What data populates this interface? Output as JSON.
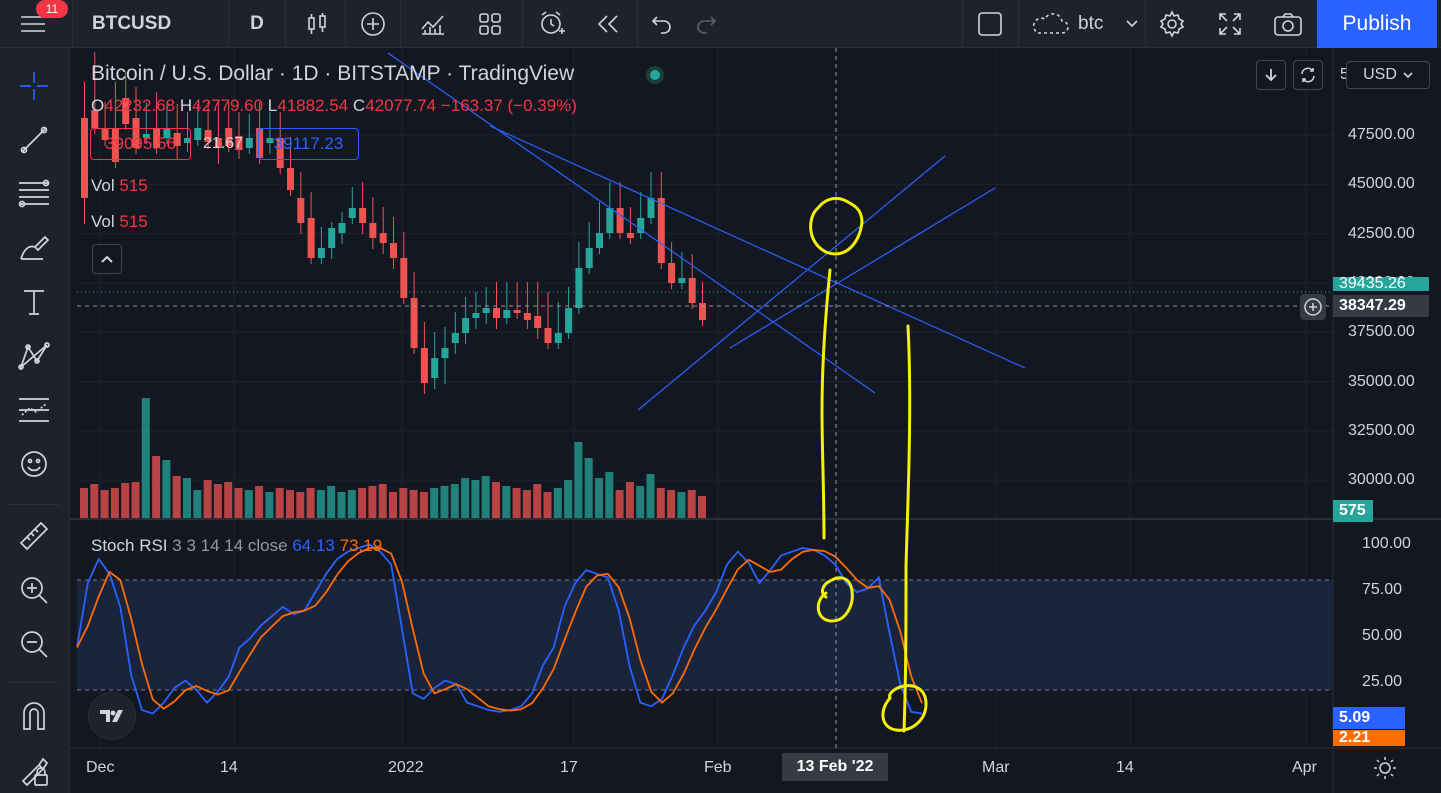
{
  "topbar": {
    "notifications": "11",
    "symbol": "BTCUSD",
    "interval": "D",
    "layout_name": "btc",
    "publish_label": "Publish"
  },
  "legend": {
    "title": "Bitcoin / U.S. Dollar · 1D · BITSTAMP · TradingView",
    "o_label": "O",
    "o": "42232.68",
    "h_label": "H",
    "h": "42779.60",
    "l_label": "L",
    "l": "41882.54",
    "c_label": "C",
    "c": "42077.74",
    "change": "−163.37 (−0.39%)",
    "sell_price": "39095.56",
    "spread": "21.67",
    "buy_price": "39117.23",
    "vol1_label": "Vol",
    "vol1": "515",
    "vol2_label": "Vol",
    "vol2": "515"
  },
  "price_axis": {
    "currency": "USD",
    "labels": [
      "47500.00",
      "45000.00",
      "42500.00",
      "40000.00",
      "37500.00",
      "35000.00",
      "32500.00",
      "30000.00"
    ],
    "top_partial": "5",
    "last_price": "39435.26",
    "crosshair_price": "38347.29",
    "volume_tag": "575"
  },
  "stoch": {
    "name": "Stoch RSI",
    "params": "3 3 14 14 close",
    "k_value": "64.13",
    "d_value": "73.19",
    "axis_labels": [
      "100.00",
      "75.00",
      "50.00",
      "25.00"
    ],
    "k_tag": "5.09",
    "d_tag": "2.21"
  },
  "time_axis": {
    "labels": [
      "Dec",
      "14",
      "2022",
      "17",
      "Feb",
      "Mar",
      "14",
      "Apr"
    ],
    "crosshair_date": "13 Feb '22"
  },
  "colors": {
    "up": "#26a69a",
    "down": "#ef5350",
    "k_line": "#2962ff",
    "d_line": "#ff6d00",
    "annotation": "#f5f00a",
    "trendline": "#2962ff"
  }
}
